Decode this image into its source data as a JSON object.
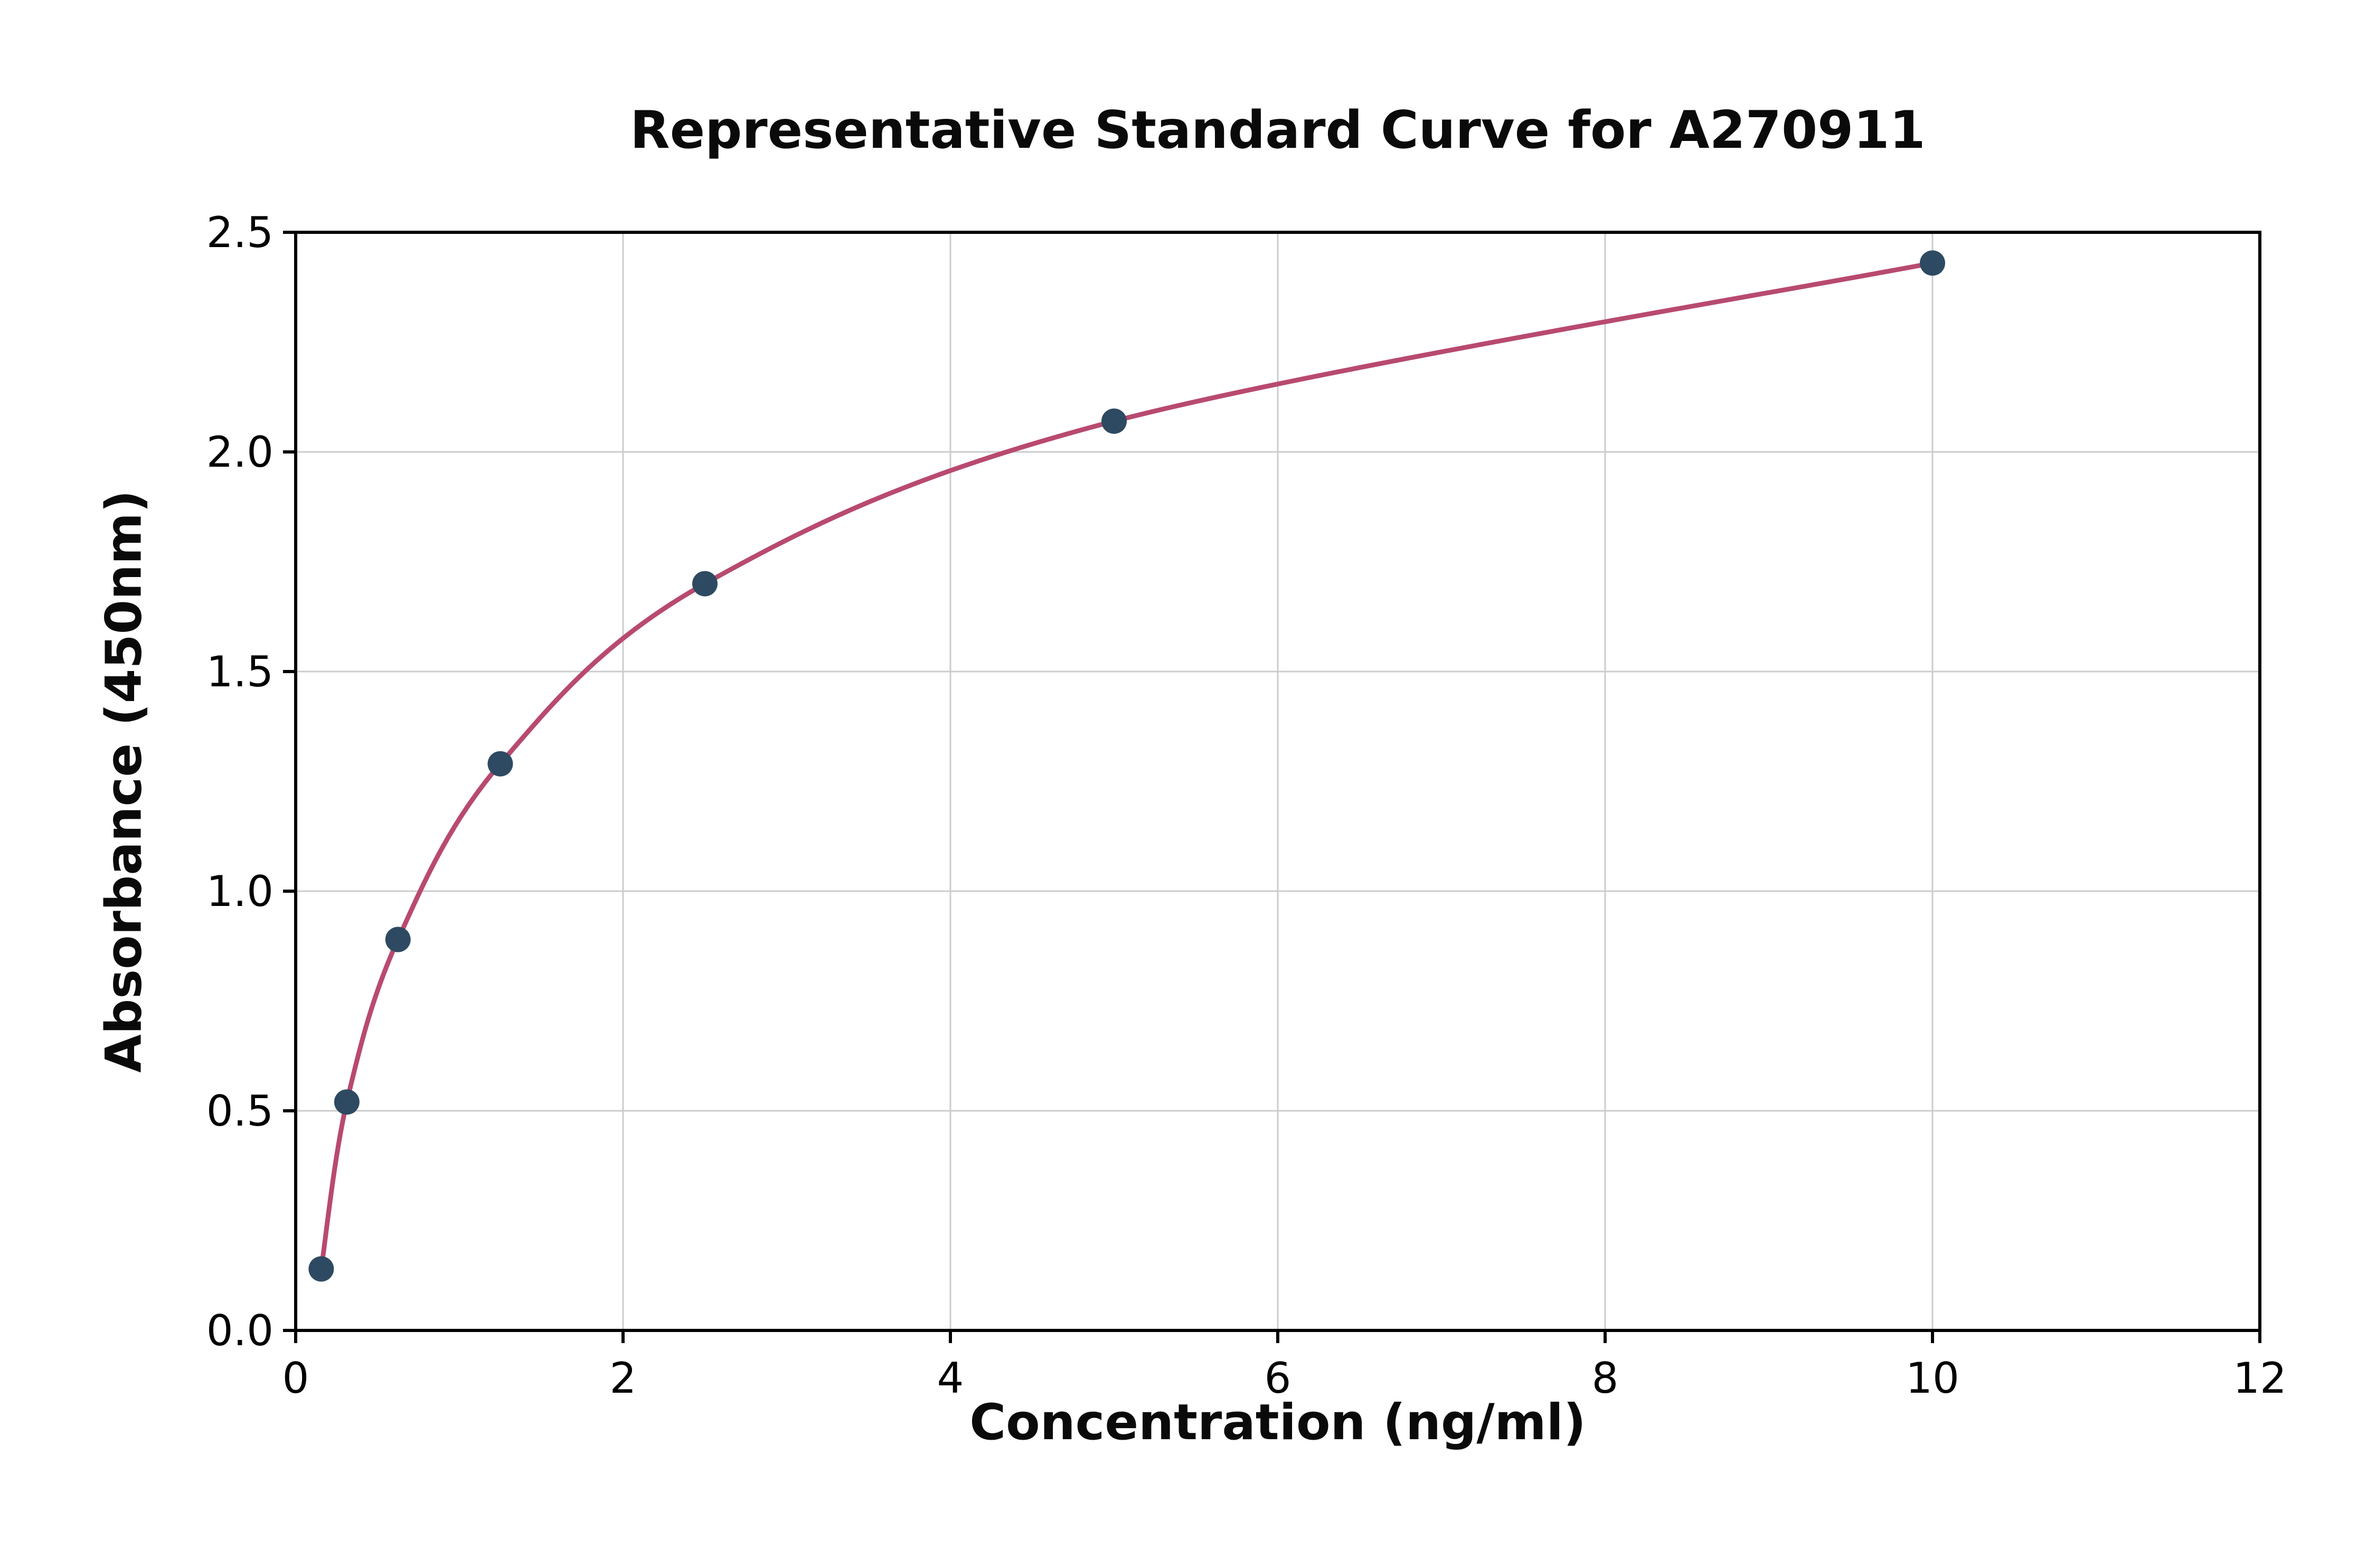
{
  "chart_data": {
    "type": "scatter",
    "title": "Representative Standard Curve for A270911",
    "xlabel": "Concentration (ng/ml)",
    "ylabel": "Absorbance (450nm)",
    "x": [
      0.156,
      0.3125,
      0.625,
      1.25,
      2.5,
      5,
      10
    ],
    "y": [
      0.14,
      0.52,
      0.89,
      1.29,
      1.7,
      2.07,
      2.43
    ],
    "xlim": [
      0,
      12
    ],
    "ylim": [
      0,
      2.5
    ],
    "xticks": [
      0,
      2,
      4,
      6,
      8,
      10,
      12
    ],
    "yticks": [
      0,
      0.5,
      1.0,
      1.5,
      2.0,
      2.5
    ],
    "xtick_labels": [
      "0",
      "2",
      "4",
      "6",
      "8",
      "10",
      "12"
    ],
    "ytick_labels": [
      "0.0",
      "0.5",
      "1.0",
      "1.5",
      "2.0",
      "2.5"
    ],
    "grid": true,
    "legend": "none",
    "colors": {
      "line": "#b84a6e",
      "marker": "#2e4a62",
      "grid": "#cccccc",
      "axis": "#000000",
      "background": "#ffffff"
    }
  }
}
